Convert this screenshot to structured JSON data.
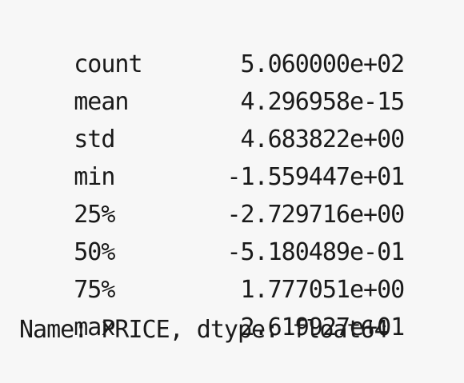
{
  "output": {
    "rows": [
      {
        "label": "count",
        "value": "5.060000e+02"
      },
      {
        "label": "mean",
        "value": "4.296958e-15"
      },
      {
        "label": "std",
        "value": "4.683822e+00"
      },
      {
        "label": "min",
        "value": "-1.559447e+01"
      },
      {
        "label": "25%",
        "value": "-2.729716e+00"
      },
      {
        "label": "50%",
        "value": "-5.180489e-01"
      },
      {
        "label": "75%",
        "value": "1.777051e+00"
      },
      {
        "label": "max",
        "value": "2.619927e+01"
      }
    ],
    "footer": "Name: PRICE, dtype: float64"
  }
}
